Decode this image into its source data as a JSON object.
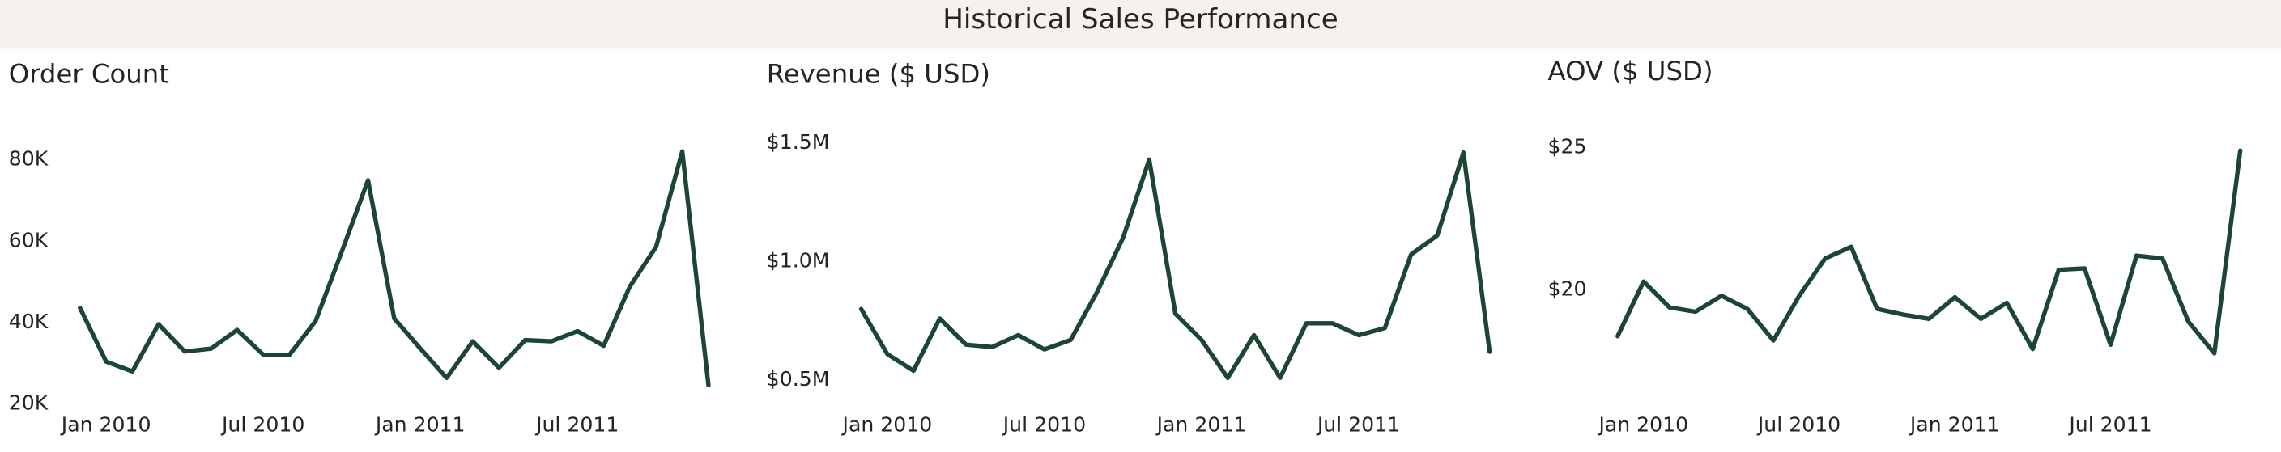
{
  "header": {
    "title": "Historical Sales Performance"
  },
  "chart_data": [
    {
      "type": "line",
      "title": "Order Count",
      "categories": [
        null,
        "Jan 2010",
        null,
        null,
        null,
        null,
        null,
        "Jul 2010",
        null,
        null,
        null,
        null,
        null,
        "Jan 2011",
        null,
        null,
        null,
        null,
        null,
        "Jul 2011",
        null,
        null,
        null,
        null,
        null
      ],
      "series": [
        {
          "name": "Order Count",
          "color": "#1b4631",
          "values": [
            43600,
            30400,
            28000,
            39600,
            32900,
            33600,
            38200,
            32100,
            32100,
            40400,
            57500,
            75000,
            41000,
            33600,
            26400,
            35400,
            28900,
            35700,
            35400,
            37900,
            34300,
            48900,
            58600,
            82100,
            24600
          ]
        }
      ],
      "ylim": [
        20000,
        90000
      ],
      "yticks": [
        {
          "value": 20000,
          "label": "20K"
        },
        {
          "value": 40000,
          "label": "40K"
        },
        {
          "value": 60000,
          "label": "60K"
        },
        {
          "value": 80000,
          "label": "80K"
        }
      ],
      "grid": false
    },
    {
      "type": "line",
      "title": "Revenue ($ USD)",
      "categories": [
        null,
        "Jan 2010",
        null,
        null,
        null,
        null,
        null,
        "Jul 2010",
        null,
        null,
        null,
        null,
        null,
        "Jan 2011",
        null,
        null,
        null,
        null,
        null,
        "Jul 2011",
        null,
        null,
        null,
        null,
        null
      ],
      "series": [
        {
          "name": "Revenue ($ USD)",
          "color": "#1b4631",
          "values": [
            800000,
            610000,
            540000,
            760000,
            650000,
            640000,
            690000,
            630000,
            670000,
            870000,
            1100000,
            1430000,
            780000,
            670000,
            510000,
            690000,
            510000,
            740000,
            740000,
            690000,
            720000,
            1030000,
            1110000,
            1460000,
            620000
          ]
        }
      ],
      "ylim": [
        400000,
        1600000
      ],
      "yticks": [
        {
          "value": 500000,
          "label": "$0.5M"
        },
        {
          "value": 1000000,
          "label": "$1.0M"
        },
        {
          "value": 1500000,
          "label": "$1.5M"
        }
      ],
      "grid": false
    },
    {
      "type": "line",
      "title": "AOV ($ USD)",
      "categories": [
        null,
        "Jan 2010",
        null,
        null,
        null,
        null,
        null,
        "Jul 2010",
        null,
        null,
        null,
        null,
        null,
        "Jan 2011",
        null,
        null,
        null,
        null,
        null,
        "Jul 2011",
        null,
        null,
        null,
        null,
        null
      ],
      "series": [
        {
          "name": "AOV ($ USD)",
          "color": "#1b4631",
          "values": [
            18.38,
            20.3,
            19.39,
            19.24,
            19.8,
            19.34,
            18.23,
            19.8,
            21.11,
            21.52,
            19.34,
            19.14,
            18.99,
            19.75,
            18.99,
            19.55,
            17.93,
            20.71,
            20.76,
            18.08,
            21.21,
            21.11,
            18.89,
            17.78,
            24.9
          ]
        }
      ],
      "ylim": [
        16,
        26
      ],
      "yticks": [
        {
          "value": 20,
          "label": "$20"
        },
        {
          "value": 25,
          "label": "$25"
        }
      ],
      "grid": false
    }
  ]
}
